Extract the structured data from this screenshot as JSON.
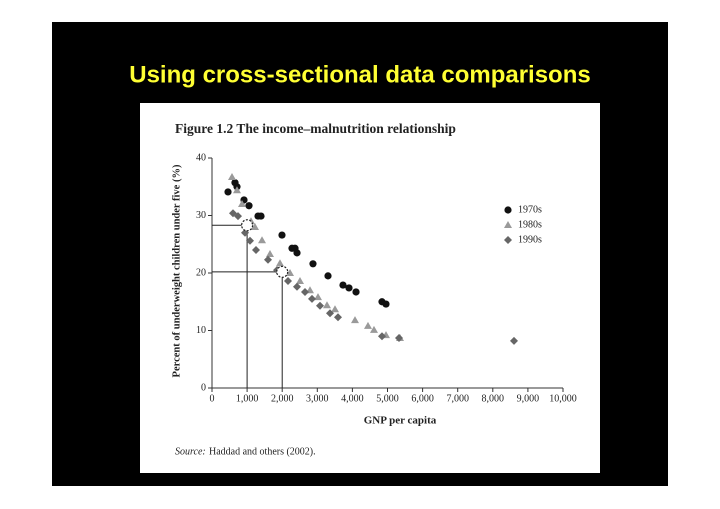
{
  "slide_title": "Using cross-sectional data comparisons",
  "chart_data": {
    "type": "scatter",
    "title": "Figure 1.2 The income–malnutrition relationship",
    "x_label": "GNP per capita",
    "y_label": "Percent of underweight children under five (%)",
    "source_label": "Source:",
    "source": "Haddad and others (2002).",
    "xlim": [
      0,
      10000
    ],
    "ylim": [
      0,
      40
    ],
    "xticks": [
      0,
      {
        "value": 1000,
        "label": "1,000"
      },
      {
        "value": 2000,
        "label": "2,000"
      },
      {
        "value": 3000,
        "label": "3,000"
      },
      {
        "value": 4000,
        "label": "4,000"
      },
      {
        "value": 5000,
        "label": "5,000"
      },
      {
        "value": 6000,
        "label": "6,000"
      },
      {
        "value": 7000,
        "label": "7,000"
      },
      {
        "value": 8000,
        "label": "8,000"
      },
      {
        "value": 9000,
        "label": "9,000"
      },
      {
        "value": 10000,
        "label": "10,000"
      }
    ],
    "yticks": [
      0,
      10,
      20,
      30,
      40
    ],
    "legend": "upper-right",
    "series": [
      {
        "name": "1970s",
        "color": "#111111",
        "marker": "circle",
        "x": [
          456,
          655,
          712,
          912,
          1054,
          1311,
          1396,
          1994,
          2279,
          2365,
          2422,
          2877,
          3305,
          3732,
          3903,
          4103,
          4843,
          4957
        ],
        "values": [
          34.1,
          35.7,
          35,
          32.7,
          31.7,
          29.9,
          29.9,
          26.6,
          24.3,
          24.3,
          23.5,
          21.6,
          19.5,
          17.9,
          17.4,
          16.7,
          15,
          14.6
        ]
      },
      {
        "name": "1980s",
        "color": "#9a9a9a",
        "marker": "triangle",
        "x": [
          570,
          712,
          855,
          1111,
          1225,
          1425,
          1652,
          1937,
          2222,
          2507,
          2792,
          3020,
          3276,
          3504,
          4074,
          4444,
          4615,
          4957,
          5356
        ],
        "values": [
          36.7,
          34.4,
          32,
          29,
          28,
          25.7,
          23.3,
          21.7,
          20,
          18.6,
          17,
          15.8,
          14.4,
          13.7,
          11.8,
          10.8,
          10.1,
          9.2,
          8.7
        ]
      },
      {
        "name": "1990s",
        "color": "#666666",
        "marker": "diamond",
        "x": [
          598,
          741,
          940,
          1083,
          1254,
          1595,
          1852,
          2165,
          2422,
          2650,
          2849,
          3077,
          3362,
          3590,
          4843,
          5328,
          8604
        ],
        "values": [
          30.4,
          29.9,
          27,
          25.6,
          24,
          22.3,
          20.5,
          18.6,
          17.6,
          16.7,
          15.5,
          14.3,
          13,
          12.3,
          9,
          8.7,
          8.2
        ]
      }
    ],
    "reference_points": {
      "x": [
        1000,
        2000
      ],
      "values": [
        28.3,
        20.2
      ]
    }
  }
}
